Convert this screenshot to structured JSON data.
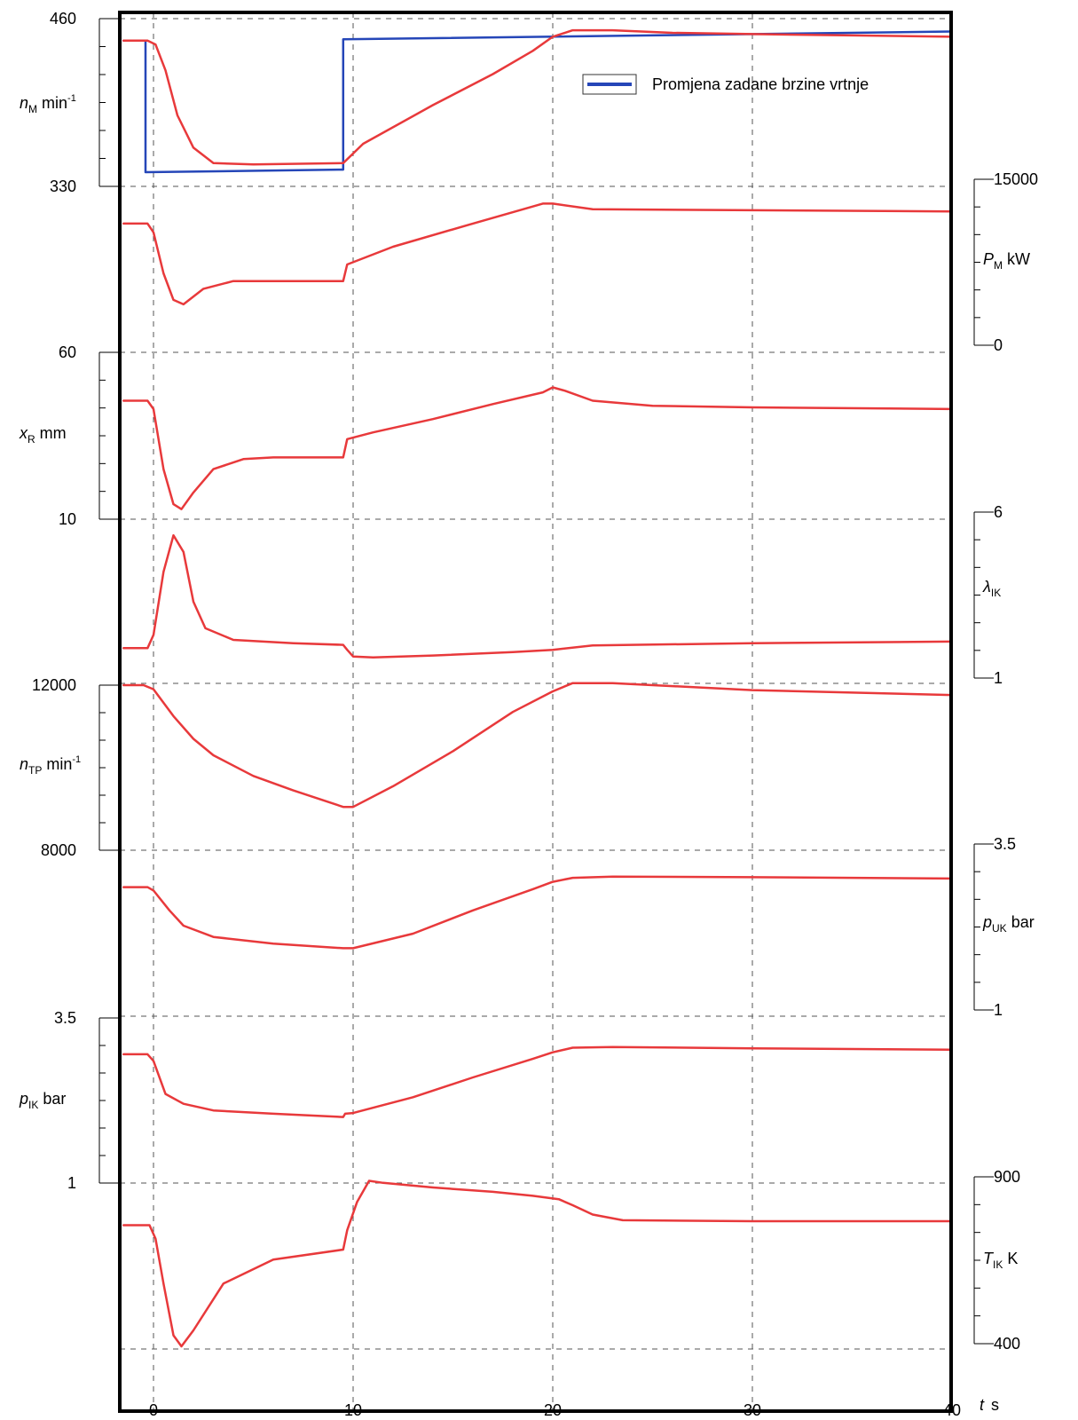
{
  "colors": {
    "response": "#e8393b",
    "setpoint": "#2546b8",
    "frame": "#000000",
    "grid": "#555555"
  },
  "chart_data": {
    "type": "line",
    "x_axis": {
      "label_symbol": "t",
      "label_unit": "s",
      "range": [
        -1.5,
        40
      ],
      "ticks": [
        "0",
        "10",
        "20",
        "30",
        "40"
      ]
    },
    "grid": true,
    "legend": {
      "position": "top-right",
      "entry": "Promjena zadane brzine vrtnje",
      "color": "#2546b8"
    },
    "panels": [
      {
        "id": "nM",
        "side": "left",
        "symbol": "n",
        "sub": "M",
        "unit": "min",
        "unit_sup": "-1",
        "range": [
          330,
          460
        ],
        "tick_labels": [
          "460",
          "330"
        ],
        "series": [
          {
            "name": "Promjena zadane brzine vrtnje",
            "color": "#2546b8",
            "points": [
              [
                -1.5,
                443
              ],
              [
                -0.4,
                443
              ],
              [
                -0.4,
                341
              ],
              [
                9.5,
                343
              ],
              [
                9.5,
                444
              ],
              [
                40,
                450
              ]
            ]
          },
          {
            "color": "#e8393b",
            "points": [
              [
                -1.5,
                443
              ],
              [
                -0.3,
                443
              ],
              [
                0.1,
                440
              ],
              [
                0.6,
                420
              ],
              [
                1.2,
                385
              ],
              [
                2,
                360
              ],
              [
                3,
                348
              ],
              [
                5,
                347
              ],
              [
                9.5,
                348
              ],
              [
                10.5,
                363
              ],
              [
                14,
                393
              ],
              [
                17,
                417
              ],
              [
                19,
                435
              ],
              [
                20,
                446
              ],
              [
                21,
                451
              ],
              [
                23,
                451
              ],
              [
                26,
                449
              ],
              [
                30,
                448
              ],
              [
                35,
                447
              ],
              [
                40,
                446
              ]
            ]
          }
        ]
      },
      {
        "id": "PM",
        "side": "right",
        "symbol": "P",
        "sub": "M",
        "unit": "kW",
        "range": [
          0,
          15000
        ],
        "tick_labels": [
          "15000",
          "0"
        ],
        "series": [
          {
            "color": "#e8393b",
            "points": [
              [
                -1.5,
                11000
              ],
              [
                -0.3,
                11000
              ],
              [
                0,
                10200
              ],
              [
                0.5,
                6500
              ],
              [
                1,
                4100
              ],
              [
                1.5,
                3700
              ],
              [
                2.5,
                5100
              ],
              [
                4,
                5800
              ],
              [
                6,
                5800
              ],
              [
                9.5,
                5800
              ],
              [
                9.7,
                7300
              ],
              [
                12,
                8900
              ],
              [
                16,
                11000
              ],
              [
                19.5,
                12800
              ],
              [
                20,
                12800
              ],
              [
                22,
                12300
              ],
              [
                30,
                12200
              ],
              [
                40,
                12100
              ]
            ]
          }
        ]
      },
      {
        "id": "xR",
        "side": "left",
        "symbol": "x",
        "sub": "R",
        "unit": "mm",
        "range": [
          10,
          60
        ],
        "tick_labels": [
          "60",
          "10"
        ],
        "series": [
          {
            "color": "#e8393b",
            "points": [
              [
                -1.5,
                45.5
              ],
              [
                -0.3,
                45.5
              ],
              [
                0,
                43
              ],
              [
                0.5,
                25
              ],
              [
                1,
                14.5
              ],
              [
                1.4,
                13
              ],
              [
                2,
                18
              ],
              [
                3,
                25
              ],
              [
                4.5,
                28
              ],
              [
                6,
                28.5
              ],
              [
                9.5,
                28.5
              ],
              [
                9.7,
                34
              ],
              [
                11,
                36
              ],
              [
                14,
                40
              ],
              [
                17,
                44.5
              ],
              [
                19.5,
                48
              ],
              [
                20,
                49.5
              ],
              [
                20.6,
                48.5
              ],
              [
                22,
                45.5
              ],
              [
                25,
                44
              ],
              [
                30,
                43.5
              ],
              [
                40,
                43
              ]
            ]
          }
        ]
      },
      {
        "id": "lIK",
        "side": "right",
        "symbol": "λ",
        "sub": "IK",
        "unit": "",
        "range": [
          1,
          6
        ],
        "tick_labels": [
          "6",
          "1"
        ],
        "series": [
          {
            "color": "#e8393b",
            "points": [
              [
                -1.5,
                1.9
              ],
              [
                -0.3,
                1.9
              ],
              [
                0,
                2.3
              ],
              [
                0.5,
                4.2
              ],
              [
                1,
                5.3
              ],
              [
                1.5,
                4.8
              ],
              [
                2,
                3.3
              ],
              [
                2.6,
                2.5
              ],
              [
                4,
                2.15
              ],
              [
                7,
                2.05
              ],
              [
                9.5,
                2.0
              ],
              [
                9.7,
                1.85
              ],
              [
                10,
                1.65
              ],
              [
                11,
                1.62
              ],
              [
                14,
                1.68
              ],
              [
                18,
                1.78
              ],
              [
                20,
                1.85
              ],
              [
                22,
                1.98
              ],
              [
                30,
                2.05
              ],
              [
                40,
                2.1
              ]
            ]
          }
        ]
      },
      {
        "id": "nTP",
        "side": "left",
        "symbol": "n",
        "sub": "TP",
        "unit": "min",
        "unit_sup": "-1",
        "range": [
          8000,
          12000
        ],
        "tick_labels": [
          "12000",
          "8000"
        ],
        "series": [
          {
            "color": "#e8393b",
            "points": [
              [
                -1.5,
                12000
              ],
              [
                -0.5,
                12000
              ],
              [
                0,
                11900
              ],
              [
                1,
                11250
              ],
              [
                2,
                10700
              ],
              [
                3,
                10300
              ],
              [
                5,
                9800
              ],
              [
                7,
                9450
              ],
              [
                9.5,
                9050
              ],
              [
                10,
                9050
              ],
              [
                12,
                9550
              ],
              [
                15,
                10400
              ],
              [
                18,
                11350
              ],
              [
                20,
                11850
              ],
              [
                21,
                12050
              ],
              [
                23,
                12050
              ],
              [
                30,
                11880
              ],
              [
                40,
                11760
              ]
            ]
          }
        ]
      },
      {
        "id": "pUK",
        "side": "right",
        "symbol": "p",
        "sub": "UK",
        "unit": "bar",
        "range": [
          1,
          3.5
        ],
        "tick_labels": [
          "3.5",
          "1"
        ],
        "series": [
          {
            "color": "#e8393b",
            "points": [
              [
                -1.5,
                2.85
              ],
              [
                -0.3,
                2.85
              ],
              [
                0,
                2.8
              ],
              [
                0.8,
                2.5
              ],
              [
                1.5,
                2.27
              ],
              [
                3,
                2.1
              ],
              [
                6,
                2.0
              ],
              [
                9.5,
                1.93
              ],
              [
                10,
                1.93
              ],
              [
                13,
                2.15
              ],
              [
                16,
                2.5
              ],
              [
                19,
                2.82
              ],
              [
                20,
                2.93
              ],
              [
                21,
                2.99
              ],
              [
                23,
                3.01
              ],
              [
                30,
                3.0
              ],
              [
                40,
                2.98
              ]
            ]
          }
        ]
      },
      {
        "id": "pIK",
        "side": "left",
        "symbol": "p",
        "sub": "IK",
        "unit": "bar",
        "range": [
          1,
          3.5
        ],
        "tick_labels": [
          "3.5",
          "1"
        ],
        "series": [
          {
            "color": "#e8393b",
            "points": [
              [
                -1.5,
                2.95
              ],
              [
                -0.3,
                2.95
              ],
              [
                0,
                2.85
              ],
              [
                0.6,
                2.35
              ],
              [
                1.5,
                2.2
              ],
              [
                3,
                2.1
              ],
              [
                6,
                2.05
              ],
              [
                9.5,
                2.0
              ],
              [
                9.6,
                2.05
              ],
              [
                10,
                2.06
              ],
              [
                13,
                2.3
              ],
              [
                16,
                2.6
              ],
              [
                19,
                2.88
              ],
              [
                20,
                2.98
              ],
              [
                21,
                3.05
              ],
              [
                23,
                3.06
              ],
              [
                30,
                3.04
              ],
              [
                40,
                3.02
              ]
            ]
          }
        ]
      },
      {
        "id": "TIK",
        "side": "right",
        "symbol": "T",
        "sub": "IK",
        "unit": "K",
        "range": [
          400,
          900
        ],
        "tick_labels": [
          "900",
          "400"
        ],
        "series": [
          {
            "color": "#e8393b",
            "points": [
              [
                -1.5,
                755
              ],
              [
                -0.2,
                755
              ],
              [
                0.1,
                715
              ],
              [
                0.5,
                580
              ],
              [
                1,
                425
              ],
              [
                1.4,
                392
              ],
              [
                2,
                440
              ],
              [
                3.5,
                580
              ],
              [
                6,
                652
              ],
              [
                9.5,
                682
              ],
              [
                9.7,
                740
              ],
              [
                10.2,
                825
              ],
              [
                10.8,
                888
              ],
              [
                11.5,
                882
              ],
              [
                14,
                868
              ],
              [
                17,
                855
              ],
              [
                19,
                843
              ],
              [
                20.3,
                833
              ],
              [
                21,
                815
              ],
              [
                22,
                787
              ],
              [
                23.5,
                770
              ],
              [
                30,
                767
              ],
              [
                40,
                767
              ]
            ]
          }
        ]
      }
    ]
  }
}
